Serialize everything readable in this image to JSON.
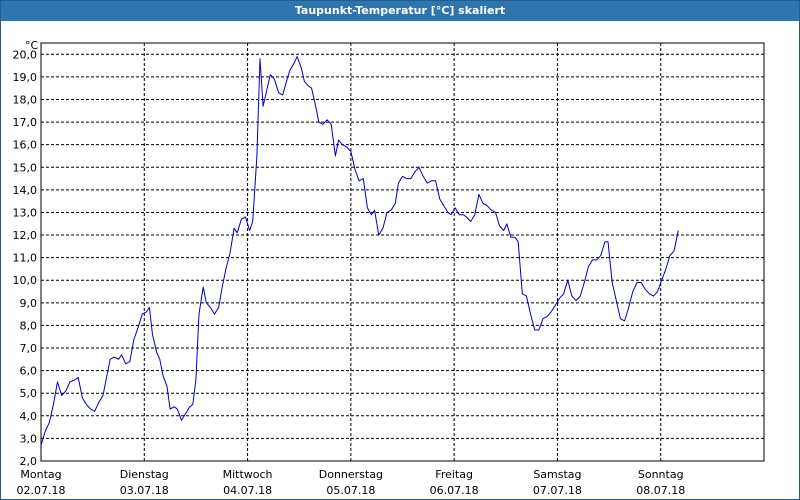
{
  "window": {
    "title": "Taupunkt-Temperatur [°C] skaliert"
  },
  "colors": {
    "titlebar": "#2f75ad",
    "line": "#0000c0",
    "grid": "#000000",
    "frame": "#000000"
  },
  "chart_data": {
    "type": "line",
    "title": "Taupunkt-Temperatur [°C] skaliert",
    "ylabel": "°C",
    "ylim": [
      2.0,
      20.5
    ],
    "grid": true,
    "y_ticks": [
      {
        "value": 2.0,
        "label": "2,0"
      },
      {
        "value": 3.0,
        "label": "3,0"
      },
      {
        "value": 4.0,
        "label": "4,0"
      },
      {
        "value": 5.0,
        "label": "5,0"
      },
      {
        "value": 6.0,
        "label": "6,0"
      },
      {
        "value": 7.0,
        "label": "7,0"
      },
      {
        "value": 8.0,
        "label": "8,0"
      },
      {
        "value": 9.0,
        "label": "9,0"
      },
      {
        "value": 10.0,
        "label": "10,0"
      },
      {
        "value": 11.0,
        "label": "11,0"
      },
      {
        "value": 12.0,
        "label": "12,0"
      },
      {
        "value": 13.0,
        "label": "13,0"
      },
      {
        "value": 14.0,
        "label": "14,0"
      },
      {
        "value": 15.0,
        "label": "15,0"
      },
      {
        "value": 16.0,
        "label": "16,0"
      },
      {
        "value": 17.0,
        "label": "17,0"
      },
      {
        "value": 18.0,
        "label": "18,0"
      },
      {
        "value": 19.0,
        "label": "19,0"
      },
      {
        "value": 20.0,
        "label": "20,0"
      }
    ],
    "xlim": [
      0,
      7.0
    ],
    "x_ticks": [
      {
        "value": 0,
        "day": "Montag",
        "date": "02.07.18"
      },
      {
        "value": 1,
        "day": "Dienstag",
        "date": "03.07.18"
      },
      {
        "value": 2,
        "day": "Mittwoch",
        "date": "04.07.18"
      },
      {
        "value": 3,
        "day": "Donnerstag",
        "date": "05.07.18"
      },
      {
        "value": 4,
        "day": "Freitag",
        "date": "06.07.18"
      },
      {
        "value": 5,
        "day": "Samstag",
        "date": "07.07.18"
      },
      {
        "value": 6,
        "day": "Sonntag",
        "date": "08.07.18"
      }
    ],
    "series": [
      {
        "points": [
          [
            0.0,
            2.7
          ],
          [
            0.04,
            3.3
          ],
          [
            0.08,
            3.7
          ],
          [
            0.12,
            4.5
          ],
          [
            0.16,
            5.5
          ],
          [
            0.2,
            4.9
          ],
          [
            0.24,
            5.1
          ],
          [
            0.28,
            5.5
          ],
          [
            0.33,
            5.6
          ],
          [
            0.36,
            5.7
          ],
          [
            0.4,
            4.8
          ],
          [
            0.44,
            4.5
          ],
          [
            0.48,
            4.3
          ],
          [
            0.52,
            4.2
          ],
          [
            0.56,
            4.6
          ],
          [
            0.6,
            4.9
          ],
          [
            0.63,
            5.6
          ],
          [
            0.67,
            6.5
          ],
          [
            0.71,
            6.6
          ],
          [
            0.75,
            6.5
          ],
          [
            0.78,
            6.7
          ],
          [
            0.82,
            6.3
          ],
          [
            0.86,
            6.4
          ],
          [
            0.9,
            7.4
          ],
          [
            0.94,
            7.9
          ],
          [
            0.98,
            8.5
          ],
          [
            1.02,
            8.6
          ],
          [
            1.05,
            8.8
          ],
          [
            1.08,
            7.6
          ],
          [
            1.12,
            6.8
          ],
          [
            1.15,
            6.5
          ],
          [
            1.18,
            5.8
          ],
          [
            1.22,
            5.3
          ],
          [
            1.25,
            4.3
          ],
          [
            1.29,
            4.4
          ],
          [
            1.32,
            4.3
          ],
          [
            1.36,
            3.8
          ],
          [
            1.4,
            4.1
          ],
          [
            1.44,
            4.4
          ],
          [
            1.47,
            4.5
          ],
          [
            1.5,
            5.6
          ],
          [
            1.53,
            8.5
          ],
          [
            1.57,
            9.7
          ],
          [
            1.6,
            9.0
          ],
          [
            1.64,
            8.8
          ],
          [
            1.68,
            8.5
          ],
          [
            1.72,
            8.8
          ],
          [
            1.75,
            9.6
          ],
          [
            1.79,
            10.5
          ],
          [
            1.83,
            11.2
          ],
          [
            1.87,
            12.3
          ],
          [
            1.9,
            12.1
          ],
          [
            1.94,
            12.7
          ],
          [
            1.98,
            12.8
          ],
          [
            2.02,
            12.2
          ],
          [
            2.05,
            12.6
          ],
          [
            2.09,
            15.5
          ],
          [
            2.12,
            19.8
          ],
          [
            2.15,
            17.7
          ],
          [
            2.18,
            18.3
          ],
          [
            2.22,
            19.1
          ],
          [
            2.26,
            18.9
          ],
          [
            2.3,
            18.3
          ],
          [
            2.34,
            18.2
          ],
          [
            2.37,
            18.7
          ],
          [
            2.41,
            19.3
          ],
          [
            2.45,
            19.6
          ],
          [
            2.48,
            19.9
          ],
          [
            2.52,
            19.4
          ],
          [
            2.55,
            18.8
          ],
          [
            2.59,
            18.6
          ],
          [
            2.62,
            18.5
          ],
          [
            2.66,
            17.7
          ],
          [
            2.69,
            17.0
          ],
          [
            2.73,
            16.9
          ],
          [
            2.77,
            17.1
          ],
          [
            2.81,
            16.9
          ],
          [
            2.85,
            15.5
          ],
          [
            2.88,
            16.2
          ],
          [
            2.92,
            16.0
          ],
          [
            2.96,
            15.9
          ],
          [
            3.0,
            15.7
          ],
          [
            3.04,
            14.9
          ],
          [
            3.08,
            14.4
          ],
          [
            3.12,
            14.5
          ],
          [
            3.16,
            13.2
          ],
          [
            3.2,
            12.9
          ],
          [
            3.23,
            13.1
          ],
          [
            3.27,
            12.0
          ],
          [
            3.31,
            12.3
          ],
          [
            3.35,
            13.0
          ],
          [
            3.39,
            13.1
          ],
          [
            3.43,
            13.4
          ],
          [
            3.46,
            14.3
          ],
          [
            3.5,
            14.6
          ],
          [
            3.54,
            14.5
          ],
          [
            3.58,
            14.5
          ],
          [
            3.62,
            14.8
          ],
          [
            3.66,
            15.0
          ],
          [
            3.7,
            14.6
          ],
          [
            3.74,
            14.3
          ],
          [
            3.78,
            14.4
          ],
          [
            3.82,
            14.4
          ],
          [
            3.86,
            13.6
          ],
          [
            3.9,
            13.3
          ],
          [
            3.94,
            13.0
          ],
          [
            3.97,
            12.9
          ],
          [
            4.01,
            13.2
          ],
          [
            4.05,
            12.9
          ],
          [
            4.09,
            12.9
          ],
          [
            4.12,
            12.8
          ],
          [
            4.16,
            12.6
          ],
          [
            4.2,
            12.9
          ],
          [
            4.24,
            13.8
          ],
          [
            4.28,
            13.4
          ],
          [
            4.32,
            13.3
          ],
          [
            4.36,
            13.1
          ],
          [
            4.4,
            13.0
          ],
          [
            4.44,
            12.4
          ],
          [
            4.48,
            12.2
          ],
          [
            4.51,
            12.5
          ],
          [
            4.55,
            11.9
          ],
          [
            4.59,
            11.9
          ],
          [
            4.62,
            11.7
          ],
          [
            4.66,
            9.4
          ],
          [
            4.7,
            9.3
          ],
          [
            4.74,
            8.5
          ],
          [
            4.78,
            7.8
          ],
          [
            4.82,
            7.8
          ],
          [
            4.86,
            8.3
          ],
          [
            4.9,
            8.4
          ],
          [
            4.94,
            8.6
          ],
          [
            4.98,
            8.9
          ],
          [
            5.02,
            9.2
          ],
          [
            5.06,
            9.4
          ],
          [
            5.1,
            10.0
          ],
          [
            5.14,
            9.3
          ],
          [
            5.18,
            9.1
          ],
          [
            5.22,
            9.3
          ],
          [
            5.26,
            9.9
          ],
          [
            5.3,
            10.6
          ],
          [
            5.34,
            10.9
          ],
          [
            5.38,
            10.9
          ],
          [
            5.42,
            11.1
          ],
          [
            5.46,
            11.7
          ],
          [
            5.49,
            11.7
          ],
          [
            5.53,
            9.9
          ],
          [
            5.57,
            9.1
          ],
          [
            5.61,
            8.3
          ],
          [
            5.65,
            8.2
          ],
          [
            5.69,
            8.8
          ],
          [
            5.73,
            9.5
          ],
          [
            5.77,
            9.9
          ],
          [
            5.81,
            9.9
          ],
          [
            5.85,
            9.6
          ],
          [
            5.89,
            9.4
          ],
          [
            5.93,
            9.3
          ],
          [
            5.97,
            9.5
          ],
          [
            6.01,
            10.0
          ],
          [
            6.05,
            10.5
          ],
          [
            6.09,
            11.1
          ],
          [
            6.13,
            11.3
          ],
          [
            6.17,
            12.2
          ]
        ]
      }
    ]
  }
}
